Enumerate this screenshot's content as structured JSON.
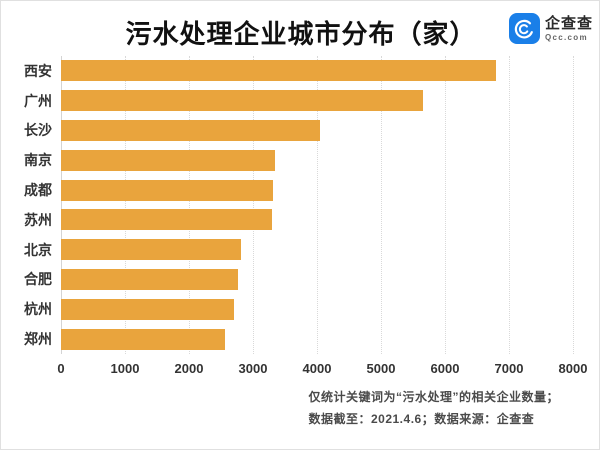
{
  "header": {
    "logo": {
      "name": "企查查",
      "domain": "Qcc.com",
      "brand_color": "#1A7FE8"
    }
  },
  "chart_data": {
    "type": "bar",
    "orientation": "horizontal",
    "title": "污水处理企业城市分布（家）",
    "categories": [
      "西安",
      "广州",
      "长沙",
      "南京",
      "成都",
      "苏州",
      "北京",
      "合肥",
      "杭州",
      "郑州"
    ],
    "values": [
      6800,
      5660,
      4040,
      3350,
      3310,
      3290,
      2820,
      2760,
      2710,
      2570
    ],
    "xlabel": "",
    "ylabel": "",
    "xlim": [
      0,
      8000
    ],
    "x_ticks": [
      0,
      1000,
      2000,
      3000,
      4000,
      5000,
      6000,
      7000,
      8000
    ],
    "bar_color": "#E9A43D",
    "grid": true,
    "gridline_style": "dotted",
    "legend": "none"
  },
  "footer": {
    "line1": "仅统计关键词为“污水处理”的相关企业数量；",
    "line2": "数据截至：2021.4.6；数据来源：企查查"
  }
}
